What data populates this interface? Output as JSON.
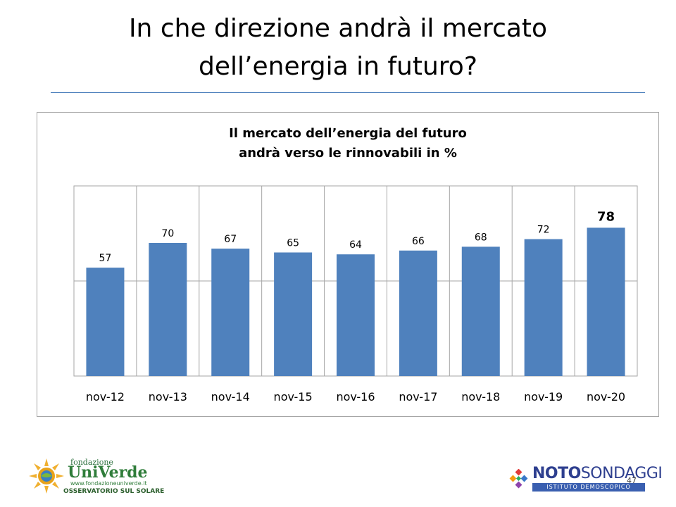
{
  "slide": {
    "title_line1": "In che direzione andrà il mercato",
    "title_line2": "dell’energia in futuro?",
    "page_number": "47"
  },
  "chart_data": {
    "type": "bar",
    "title": "Il mercato dell’energia del futuro andrà verso le rinnovabili in %",
    "title_line1": "Il mercato dell’energia del futuro",
    "title_line2": "andrà verso le rinnovabili in %",
    "categories": [
      "nov-12",
      "nov-13",
      "nov-14",
      "nov-15",
      "nov-16",
      "nov-17",
      "nov-18",
      "nov-19",
      "nov-20"
    ],
    "values": [
      57,
      70,
      67,
      65,
      64,
      66,
      68,
      72,
      78
    ],
    "highlight_index": 8,
    "ylim": [
      0,
      100
    ],
    "gridlines": [
      50,
      100
    ],
    "xlabel": "",
    "ylabel": "",
    "bar_color": "#4f81bd",
    "grid": true,
    "legend": "none"
  },
  "logos": {
    "univerde": {
      "fondazione": "fondazione",
      "name": "UniVerde",
      "url": "www.fondazioneuniverde.it",
      "tagline": "OSSERVATORIO SUL SOLARE"
    },
    "noto": {
      "bold": "NOTO",
      "light": "SONDAGGI",
      "subtitle": "ISTITUTO DEMOSCOPICO"
    }
  }
}
